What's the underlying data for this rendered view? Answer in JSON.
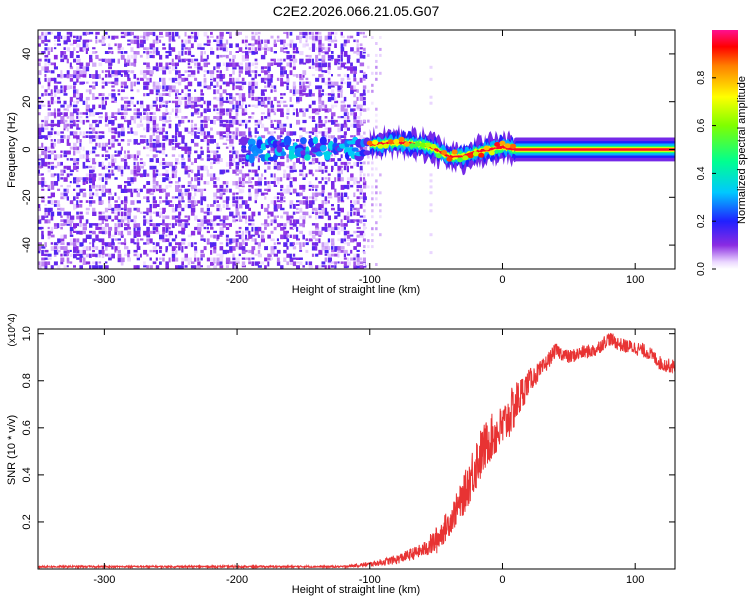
{
  "title": "C2E2.2026.066.21.05.G07",
  "chart_data": [
    {
      "type": "heatmap",
      "title": "C2E2.2026.066.21.05.G07",
      "xlabel": "Height of straight line (km)",
      "ylabel": "Frequency (Hz)",
      "xlim": [
        -350,
        130
      ],
      "ylim": [
        -50,
        50
      ],
      "xticks": [
        -300,
        -200,
        -100,
        0,
        100
      ],
      "xtick_labels": [
        "-300",
        "-200",
        "-100",
        "0",
        "100"
      ],
      "yticks": [
        -40,
        -20,
        0,
        20,
        40
      ],
      "ytick_labels": [
        "-40",
        "-20",
        "0",
        "20",
        "40"
      ],
      "colorbar": {
        "label": "Normalized spectral amplitude",
        "range": [
          0,
          1
        ],
        "ticks": [
          0.0,
          0.2,
          0.4,
          0.6,
          0.8
        ],
        "tick_labels": [
          "0.0",
          "0.2",
          "0.4",
          "0.6",
          "0.8"
        ],
        "colormap": "rainbow (white-purple-blue-cyan-green-yellow-red)"
      },
      "regions": [
        {
          "name": "scattered noise",
          "x_range": [
            -350,
            -105
          ],
          "y_range": [
            -50,
            50
          ],
          "amplitude": 0.1
        },
        {
          "name": "sparse noise",
          "x_range": [
            -105,
            -90
          ],
          "y_range": [
            -50,
            50
          ],
          "amplitude": 0.05
        },
        {
          "name": "signal onset",
          "x_range": [
            -195,
            -100
          ],
          "y_center": 0,
          "amplitude": 0.2
        },
        {
          "name": "signal line",
          "x_range": [
            -100,
            130
          ],
          "y_center": 0,
          "amplitude": 1.0
        }
      ],
      "signal_track": {
        "x": [
          -100,
          -80,
          -60,
          -50,
          -40,
          -30,
          -20,
          -10,
          0,
          10,
          50,
          100,
          130
        ],
        "y": [
          2,
          3,
          2,
          0,
          -3,
          -3,
          -1,
          0,
          1,
          0,
          0,
          0,
          0
        ]
      }
    },
    {
      "type": "line",
      "xlabel": "Height of straight line (km)",
      "ylabel": "SNR (10 * v/v)",
      "y_multiplier": "(x10^4)",
      "xlim": [
        -350,
        130
      ],
      "ylim": [
        0,
        1.02
      ],
      "xticks": [
        -300,
        -200,
        -100,
        0,
        100
      ],
      "xtick_labels": [
        "-300",
        "-200",
        "-100",
        "0",
        "100"
      ],
      "yticks": [
        0.2,
        0.4,
        0.6,
        0.8,
        1.0
      ],
      "ytick_labels": [
        "0.2",
        "0.4",
        "0.6",
        "0.8",
        "1.0"
      ],
      "series": [
        {
          "name": "SNR",
          "color": "#e83333",
          "x": [
            -350,
            -120,
            -100,
            -80,
            -60,
            -50,
            -40,
            -30,
            -20,
            -10,
            0,
            10,
            20,
            30,
            40,
            50,
            60,
            70,
            80,
            90,
            100,
            110,
            120,
            130
          ],
          "y": [
            0.01,
            0.01,
            0.02,
            0.04,
            0.08,
            0.12,
            0.2,
            0.3,
            0.45,
            0.55,
            0.6,
            0.7,
            0.8,
            0.85,
            0.93,
            0.9,
            0.92,
            0.93,
            0.98,
            0.95,
            0.94,
            0.92,
            0.87,
            0.86
          ],
          "noise": [
            0.004,
            0.004,
            0.01,
            0.02,
            0.03,
            0.06,
            0.06,
            0.08,
            0.12,
            0.1,
            0.1,
            0.1,
            0.05,
            0.04,
            0.03,
            0.03,
            0.03,
            0.03,
            0.03,
            0.03,
            0.03,
            0.03,
            0.03,
            0.03
          ]
        }
      ]
    }
  ]
}
